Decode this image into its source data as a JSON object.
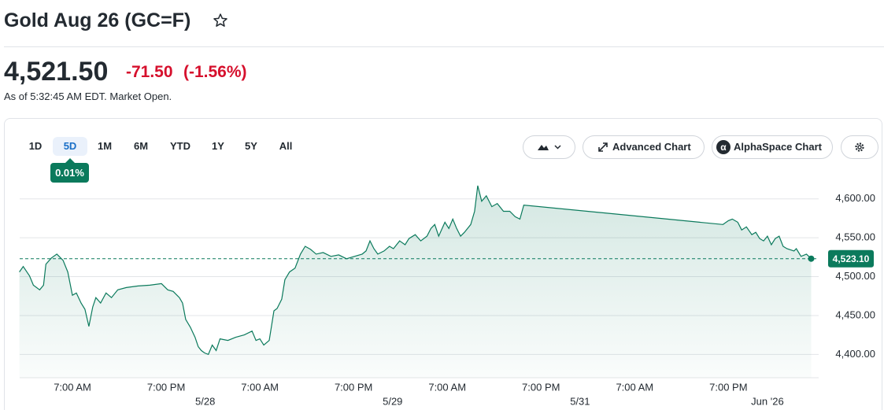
{
  "header": {
    "title": "Gold Aug 26 (GC=F)",
    "price": "4,521.50",
    "change": "-71.50",
    "change_percent": "(-1.56%)",
    "as_of": "As of 5:32:45 AM EDT. Market Open."
  },
  "toolbar": {
    "ranges": [
      "1D",
      "5D",
      "1M",
      "6M",
      "YTD",
      "1Y",
      "5Y",
      "All"
    ],
    "selected": 1,
    "badge": "0.01%",
    "buttons": [
      "Advanced Chart",
      "AlphaSpace Chart"
    ]
  },
  "chart_data": {
    "type": "line",
    "color": "#0b7a5c",
    "grid": true,
    "x": [
      0.2,
      0.7,
      1.5,
      2.0,
      2.8,
      3.3,
      3.6,
      4.3,
      5.0,
      5.8,
      6.4,
      7.0,
      7.5,
      8.1,
      8.6,
      9.1,
      9.6,
      10.0,
      10.6,
      11.3,
      12.0,
      12.8,
      13.9,
      15.4,
      16.9,
      18.4,
      19.2,
      19.9,
      20.7,
      21.1,
      21.5,
      22.1,
      22.7,
      23.1,
      23.5,
      23.9,
      24.4,
      24.9,
      25.4,
      25.9,
      26.9,
      27.9,
      29.0,
      30.0,
      30.5,
      31.0,
      31.5,
      32.2,
      32.8,
      33.2,
      33.8,
      34.2,
      34.8,
      35.5,
      36.2,
      36.8,
      37.5,
      38.2,
      39.1,
      40.1,
      41.1,
      42.1,
      43.1,
      44.1,
      44.6,
      45.1,
      45.6,
      46.1,
      46.9,
      47.6,
      48.1,
      48.9,
      49.6,
      50.1,
      50.9,
      51.6,
      52.4,
      52.9,
      53.4,
      53.9,
      54.7,
      55.2,
      55.7,
      56.2,
      56.7,
      57.2,
      58.0,
      58.5,
      58.9,
      59.4,
      60.0,
      60.7,
      61.4,
      62.2,
      63.0,
      63.7,
      64.3,
      64.8,
      90.3,
      91.0,
      91.5,
      92.2,
      92.7,
      93.3,
      94.0,
      94.5,
      95.0,
      95.5,
      96.0,
      96.5,
      97.0,
      97.5,
      98.0,
      98.5,
      99.4,
      99.7,
      100.3,
      101.0,
      101.6
    ],
    "values": [
      4506,
      4513,
      4501,
      4489,
      4483,
      4489,
      4516,
      4524,
      4529,
      4521,
      4506,
      4476,
      4479,
      4466,
      4458,
      4436,
      4461,
      4473,
      4466,
      4479,
      4473,
      4483,
      4486,
      4488,
      4489,
      4491,
      4483,
      4481,
      4473,
      4466,
      4445,
      4435,
      4422,
      4410,
      4405,
      4402,
      4400,
      4412,
      4405,
      4420,
      4418,
      4422,
      4425,
      4430,
      4418,
      4420,
      4412,
      4418,
      4456,
      4459,
      4471,
      4496,
      4506,
      4511,
      4529,
      4539,
      4535,
      4529,
      4531,
      4526,
      4528,
      4523,
      4526,
      4529,
      4533,
      4546,
      4536,
      4529,
      4533,
      4539,
      4536,
      4546,
      4541,
      4549,
      4554,
      4546,
      4552,
      4562,
      4567,
      4552,
      4570,
      4562,
      4574,
      4562,
      4552,
      4557,
      4567,
      4584,
      4617,
      4597,
      4604,
      4590,
      4594,
      4584,
      4584,
      4577,
      4574,
      4592,
      4567,
      4572,
      4574,
      4570,
      4560,
      4564,
      4554,
      4557,
      4549,
      4546,
      4552,
      4541,
      4549,
      4552,
      4539,
      4536,
      4533,
      4536,
      4526,
      4529,
      4523.1
    ],
    "xlim": [
      0,
      104
    ],
    "ylim": [
      4370,
      4625
    ],
    "yticks": [
      {
        "value": 4400,
        "label": "4,400.00"
      },
      {
        "value": 4450,
        "label": "4,450.00"
      },
      {
        "value": 4500,
        "label": "4,500.00"
      },
      {
        "value": 4550,
        "label": "4,550.00"
      },
      {
        "value": 4600,
        "label": "4,600.00"
      }
    ],
    "xticks": [
      {
        "value": 7,
        "label": "7:00 AM"
      },
      {
        "value": 19,
        "label": "7:00 PM"
      },
      {
        "value": 31,
        "label": "7:00 AM"
      },
      {
        "value": 43,
        "label": "7:00 PM"
      },
      {
        "value": 55,
        "label": "7:00 AM"
      },
      {
        "value": 67,
        "label": "7:00 PM"
      },
      {
        "value": 79,
        "label": "7:00 AM"
      },
      {
        "value": 91,
        "label": "7:00 PM"
      }
    ],
    "xticks_secondary": [
      {
        "value": 24,
        "label": "5/28"
      },
      {
        "value": 48,
        "label": "5/29"
      },
      {
        "value": 72,
        "label": "5/31"
      },
      {
        "value": 96,
        "label": "Jun '26"
      }
    ],
    "last": {
      "value": 4523.1,
      "label": "4,523.10"
    }
  }
}
